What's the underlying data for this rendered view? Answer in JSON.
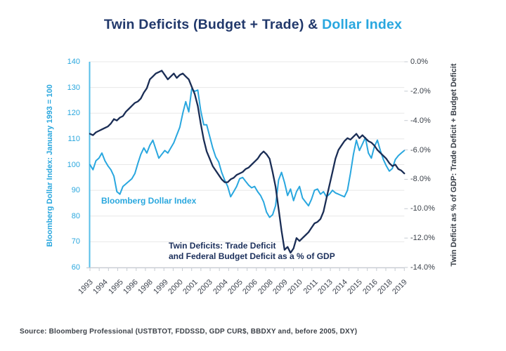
{
  "title": {
    "part1": "Twin Deficits (Budget + Trade) & ",
    "part2": "Dollar Index"
  },
  "source": "Source: Bloomberg Professional (USTBTOT, FDDSSD, GDP CUR$, BBDXY and, before 2005, DXY)",
  "colors": {
    "navy": "#1A2D55",
    "title_navy": "#21386B",
    "light_blue": "#29A7DF",
    "left_spine_blue": "#56BEE9",
    "grid": "#E8E8E8",
    "axis_gray": "#C6CBD2"
  },
  "chart_data": {
    "type": "line",
    "title": "Twin Deficits (Budget + Trade) & Dollar Index",
    "grid": "horizontal",
    "legend_position": "none (in-plot text annotations)",
    "annotations": [
      {
        "text": "Bloomberg Dollar Index",
        "color": "#29A7DF"
      },
      {
        "text": "Twin Deficits: Trade Deficit",
        "text2": "and Federal Budget Deficit as a % of GDP",
        "color": "#1B2F5B"
      }
    ],
    "left_axis": {
      "title": "Bloomberg Dollar Index: January 1993 = 100",
      "ticks": [
        "140",
        "130",
        "120",
        "110",
        "100",
        "90",
        "80",
        "70",
        "60"
      ],
      "range": [
        60,
        140
      ]
    },
    "right_axis": {
      "title": "Twin Deficit as % of GDP: Trade Deficit + Budget Deficit",
      "ticks": [
        "0.0%",
        "-2.0%",
        "-4.0%",
        "-6.0%",
        "-8.0%",
        "-10.0%",
        "-12.0%",
        "-14.0%"
      ],
      "range": [
        -14,
        0
      ]
    },
    "x_axis": {
      "labels": [
        "1993",
        "1994",
        "1995",
        "1996",
        "1998",
        "1999",
        "2000",
        "2001",
        "2003",
        "2004",
        "2005",
        "2006",
        "2008",
        "2009",
        "2010",
        "2011",
        "2013",
        "2014",
        "2015",
        "2016",
        "2018",
        "2019"
      ],
      "range_years": [
        1993.0,
        2019.25
      ],
      "note": "quarterly data, one tick label every 5 quarters"
    },
    "x_start_year": 1993.0,
    "x_step_years": 0.25,
    "series": [
      {
        "name": "Bloomberg Dollar Index",
        "axis": "left",
        "color": "#29A7DF",
        "values": [
          100.0,
          98.0,
          101.5,
          102.5,
          104.5,
          101.5,
          99.5,
          98.0,
          95.5,
          89.5,
          88.5,
          91.5,
          92.5,
          93.5,
          94.5,
          96.5,
          100.5,
          104.0,
          106.5,
          104.5,
          107.5,
          109.5,
          106.0,
          102.5,
          104.0,
          105.5,
          104.5,
          106.5,
          108.5,
          111.5,
          114.5,
          120.0,
          124.5,
          120.5,
          129.5,
          128.5,
          129.0,
          121.0,
          115.5,
          115.5,
          111.0,
          106.5,
          103.0,
          101.0,
          97.0,
          94.0,
          91.5,
          87.5,
          89.5,
          91.5,
          94.5,
          95.0,
          93.5,
          92.0,
          91.0,
          91.5,
          89.5,
          88.0,
          85.5,
          81.5,
          79.5,
          80.5,
          84.0,
          94.0,
          97.0,
          93.0,
          88.0,
          90.5,
          86.0,
          89.5,
          91.5,
          87.0,
          85.5,
          84.0,
          86.5,
          90.0,
          90.5,
          88.5,
          89.5,
          87.5,
          88.5,
          90.0,
          89.0,
          88.5,
          88.0,
          87.5,
          90.0,
          96.5,
          104.0,
          109.5,
          105.5,
          108.0,
          110.5,
          104.5,
          102.5,
          107.0,
          109.5,
          105.5,
          102.0,
          99.5,
          97.5,
          98.5,
          102.0,
          103.5,
          104.5,
          105.5
        ]
      },
      {
        "name": "Twin Deficits (Trade Deficit + Federal Budget Deficit, % of GDP)",
        "axis": "right",
        "color": "#1A2D55",
        "values": [
          -4.9,
          -5.0,
          -4.8,
          -4.7,
          -4.6,
          -4.5,
          -4.4,
          -4.2,
          -3.9,
          -4.0,
          -3.8,
          -3.7,
          -3.4,
          -3.2,
          -3.0,
          -2.8,
          -2.7,
          -2.5,
          -2.1,
          -1.8,
          -1.2,
          -1.0,
          -0.8,
          -0.7,
          -0.6,
          -0.9,
          -1.2,
          -1.0,
          -0.8,
          -1.1,
          -0.9,
          -0.8,
          -1.0,
          -1.2,
          -1.7,
          -2.2,
          -3.0,
          -4.2,
          -5.3,
          -6.1,
          -6.6,
          -7.1,
          -7.4,
          -7.7,
          -8.0,
          -8.2,
          -8.2,
          -8.0,
          -7.9,
          -7.7,
          -7.6,
          -7.5,
          -7.3,
          -7.2,
          -7.0,
          -6.8,
          -6.6,
          -6.3,
          -6.1,
          -6.3,
          -6.6,
          -7.5,
          -8.5,
          -10.0,
          -11.5,
          -12.8,
          -12.6,
          -13.0,
          -12.7,
          -12.0,
          -12.2,
          -12.0,
          -11.8,
          -11.6,
          -11.3,
          -11.0,
          -10.9,
          -10.7,
          -10.2,
          -9.3,
          -8.4,
          -7.5,
          -6.6,
          -6.0,
          -5.7,
          -5.4,
          -5.2,
          -5.3,
          -5.1,
          -4.9,
          -5.2,
          -5.0,
          -5.2,
          -5.4,
          -5.5,
          -5.7,
          -6.0,
          -6.2,
          -6.4,
          -6.6,
          -6.9,
          -7.1,
          -7.0,
          -7.3,
          -7.4,
          -7.6
        ]
      }
    ]
  }
}
